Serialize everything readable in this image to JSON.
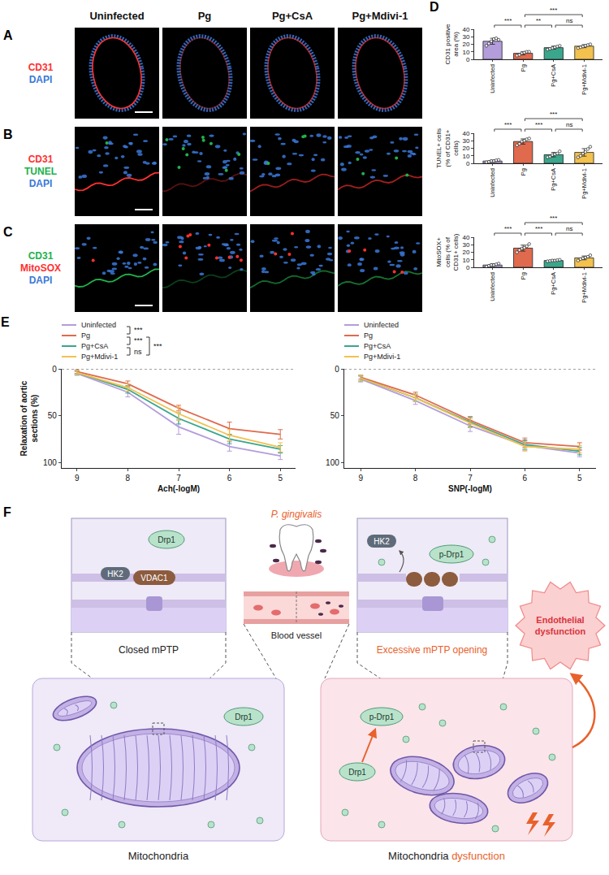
{
  "images": {
    "columns": [
      "Uninfected",
      "Pg",
      "Pg+CsA",
      "Pg+Mdivi-1"
    ],
    "rows": [
      {
        "panel": "A",
        "stains": [
          {
            "text": "CD31",
            "color": "#ff3030"
          },
          {
            "text": "DAPI",
            "color": "#3a78d8"
          }
        ]
      },
      {
        "panel": "B",
        "stains": [
          {
            "text": "CD31",
            "color": "#ff3030"
          },
          {
            "text": "TUNEL",
            "color": "#22b14c"
          },
          {
            "text": "DAPI",
            "color": "#3a78d8"
          }
        ]
      },
      {
        "panel": "C",
        "stains": [
          {
            "text": "CD31",
            "color": "#22b14c"
          },
          {
            "text": "MitoSOX",
            "color": "#ff3030"
          },
          {
            "text": "DAPI",
            "color": "#3a78d8"
          }
        ]
      }
    ]
  },
  "chart_data": [
    {
      "panel": "D",
      "type": "bar",
      "y_label": "CD31 positive area (%)",
      "categories": [
        "Uninfected",
        "Pg",
        "Pg+CsA",
        "Pg+Mdivi-1"
      ],
      "values": [
        24,
        8,
        15.5,
        17.5
      ],
      "errors": [
        4,
        2,
        2,
        2
      ],
      "points": [
        [
          18,
          21,
          24,
          27,
          28,
          26
        ],
        [
          5,
          6,
          8,
          9,
          10,
          10
        ],
        [
          13,
          14,
          15,
          16,
          17,
          18
        ],
        [
          15,
          16,
          17,
          18,
          19,
          20
        ]
      ],
      "colors": [
        "#b39ddb",
        "#e06a4e",
        "#3aa68b",
        "#f2c14e"
      ],
      "ylim": [
        0,
        40
      ],
      "yticks": [
        0,
        10,
        20,
        30,
        40
      ],
      "comparisons": [
        {
          "from": "Uninfected",
          "to": "Pg",
          "label": "***"
        },
        {
          "from": "Pg",
          "to": "Pg+CsA",
          "label": "**"
        },
        {
          "from": "Pg",
          "to": "Pg+Mdivi-1",
          "label": "***"
        },
        {
          "from": "Pg+CsA",
          "to": "Pg+Mdivi-1",
          "label": "ns"
        }
      ]
    },
    {
      "type": "bar",
      "y_label": "TUNEL+ cells (% of CD31+ cells)",
      "categories": [
        "Uninfected",
        "Pg",
        "Pg+CsA",
        "Pg+Mdivi-1"
      ],
      "values": [
        3,
        29,
        11.5,
        14.5
      ],
      "errors": [
        1.2,
        3.5,
        3,
        5
      ],
      "points": [
        [
          1.5,
          2,
          3,
          3,
          4,
          4.5
        ],
        [
          24,
          26,
          29,
          30,
          32,
          33
        ],
        [
          8,
          9,
          11,
          12,
          13,
          16
        ],
        [
          8,
          10,
          13,
          15,
          19,
          22
        ]
      ],
      "colors": [
        "#b39ddb",
        "#e06a4e",
        "#3aa68b",
        "#f2c14e"
      ],
      "ylim": [
        0,
        40
      ],
      "yticks": [
        0,
        10,
        20,
        30,
        40
      ],
      "comparisons": [
        {
          "from": "Uninfected",
          "to": "Pg",
          "label": "***"
        },
        {
          "from": "Pg",
          "to": "Pg+CsA",
          "label": "***"
        },
        {
          "from": "Pg",
          "to": "Pg+Mdivi-1",
          "label": "***"
        },
        {
          "from": "Pg+CsA",
          "to": "Pg+Mdivi-1",
          "label": "ns"
        }
      ]
    },
    {
      "type": "bar",
      "y_label": "MitoSOX+ cells (% of CD31+ cells)",
      "categories": [
        "Uninfected",
        "Pg",
        "Pg+CsA",
        "Pg+Mdivi-1"
      ],
      "values": [
        3,
        25.5,
        9,
        12.5
      ],
      "errors": [
        1.5,
        4,
        0.8,
        2.5
      ],
      "points": [
        [
          1,
          2,
          3,
          3,
          4,
          5
        ],
        [
          20,
          23,
          25,
          26,
          28,
          31
        ],
        [
          8,
          8.5,
          9,
          9,
          9.5,
          10
        ],
        [
          9,
          11,
          12,
          13,
          14,
          16
        ]
      ],
      "colors": [
        "#b39ddb",
        "#e06a4e",
        "#3aa68b",
        "#f2c14e"
      ],
      "ylim": [
        0,
        40
      ],
      "yticks": [
        0,
        10,
        20,
        30,
        40
      ],
      "comparisons": [
        {
          "from": "Uninfected",
          "to": "Pg",
          "label": "***"
        },
        {
          "from": "Pg",
          "to": "Pg+CsA",
          "label": "***"
        },
        {
          "from": "Pg",
          "to": "Pg+Mdivi-1",
          "label": "***"
        },
        {
          "from": "Pg+CsA",
          "to": "Pg+Mdivi-1",
          "label": "ns"
        }
      ]
    },
    {
      "panel": "E",
      "type": "line",
      "x_label": "Ach(-logM)",
      "y_label": "Relaxation of aortic sections (%)",
      "x": [
        9,
        8,
        7,
        6,
        5
      ],
      "xlim": [
        9.3,
        4.7
      ],
      "xticks": [
        9,
        8,
        7,
        6,
        5
      ],
      "ylim": [
        106,
        0
      ],
      "yticks": [
        0,
        50,
        100
      ],
      "series": [
        {
          "name": "Uninfected",
          "color": "#b39ddb",
          "values": [
            5,
            25,
            62,
            83,
            93
          ],
          "errors": [
            2,
            5,
            8,
            5,
            4
          ]
        },
        {
          "name": "Pg",
          "color": "#e06a4e",
          "values": [
            3,
            16,
            42,
            64,
            70
          ],
          "errors": [
            2,
            3,
            3,
            7,
            5
          ]
        },
        {
          "name": "Pg+CsA",
          "color": "#3aa68b",
          "values": [
            4,
            22,
            53,
            75,
            86
          ],
          "errors": [
            2,
            4,
            6,
            5,
            4
          ]
        },
        {
          "name": "Pg+Mdivi-1",
          "color": "#f2c14e",
          "values": [
            4,
            20,
            48,
            71,
            84
          ],
          "errors": [
            2,
            4,
            7,
            6,
            5
          ]
        }
      ],
      "legend": "top left",
      "comparisons": [
        {
          "from": "Uninfected",
          "to": "Pg",
          "label": "***"
        },
        {
          "from": "Pg",
          "to": "Pg+CsA",
          "label": "***"
        },
        {
          "from": "Pg+CsA",
          "to": "Pg+Mdivi-1",
          "label": "ns"
        },
        {
          "from": "Pg",
          "to": "Pg+Mdivi-1",
          "label": "***"
        }
      ]
    },
    {
      "type": "line",
      "x_label": "SNP(-logM)",
      "x": [
        9,
        8,
        7,
        6,
        5
      ],
      "xlim": [
        9.3,
        4.7
      ],
      "xticks": [
        9,
        8,
        7,
        6,
        5
      ],
      "ylim": [
        106,
        0
      ],
      "yticks": [
        0,
        50,
        100
      ],
      "series": [
        {
          "name": "Uninfected",
          "color": "#b39ddb",
          "values": [
            11,
            34,
            61,
            82,
            90
          ],
          "errors": [
            3,
            4,
            6,
            5,
            4
          ]
        },
        {
          "name": "Pg",
          "color": "#e06a4e",
          "values": [
            9,
            28,
            55,
            79,
            83
          ],
          "errors": [
            2,
            3,
            4,
            5,
            4
          ]
        },
        {
          "name": "Pg+CsA",
          "color": "#3aa68b",
          "values": [
            10,
            31,
            57,
            81,
            88
          ],
          "errors": [
            3,
            4,
            5,
            5,
            4
          ]
        },
        {
          "name": "Pg+Mdivi-1",
          "color": "#f2c14e",
          "values": [
            10,
            31,
            58,
            83,
            86
          ],
          "errors": [
            3,
            4,
            5,
            5,
            4
          ]
        }
      ],
      "legend": "top left"
    }
  ],
  "diagram": {
    "panel": "F",
    "pathogen": "P. gingivalis",
    "vessel": "Blood vessel",
    "closed_inset": {
      "drp1": "Drp1",
      "hk2": "HK2",
      "vdac1": "VDAC1",
      "caption": "Closed mPTP"
    },
    "open_inset": {
      "drp1": "p-Drp1",
      "hk2": "HK2",
      "caption": "Excessive mPTP opening"
    },
    "healthy_cell": {
      "drp1": "Drp1",
      "caption": "Mitochondria"
    },
    "infected_cell": {
      "pdrp1": "p-Drp1",
      "drp1": "Drp1",
      "caption": "Mitochondria",
      "caption_highlight": "dysfunction"
    },
    "outcome": "Endothelial dysfunction"
  }
}
